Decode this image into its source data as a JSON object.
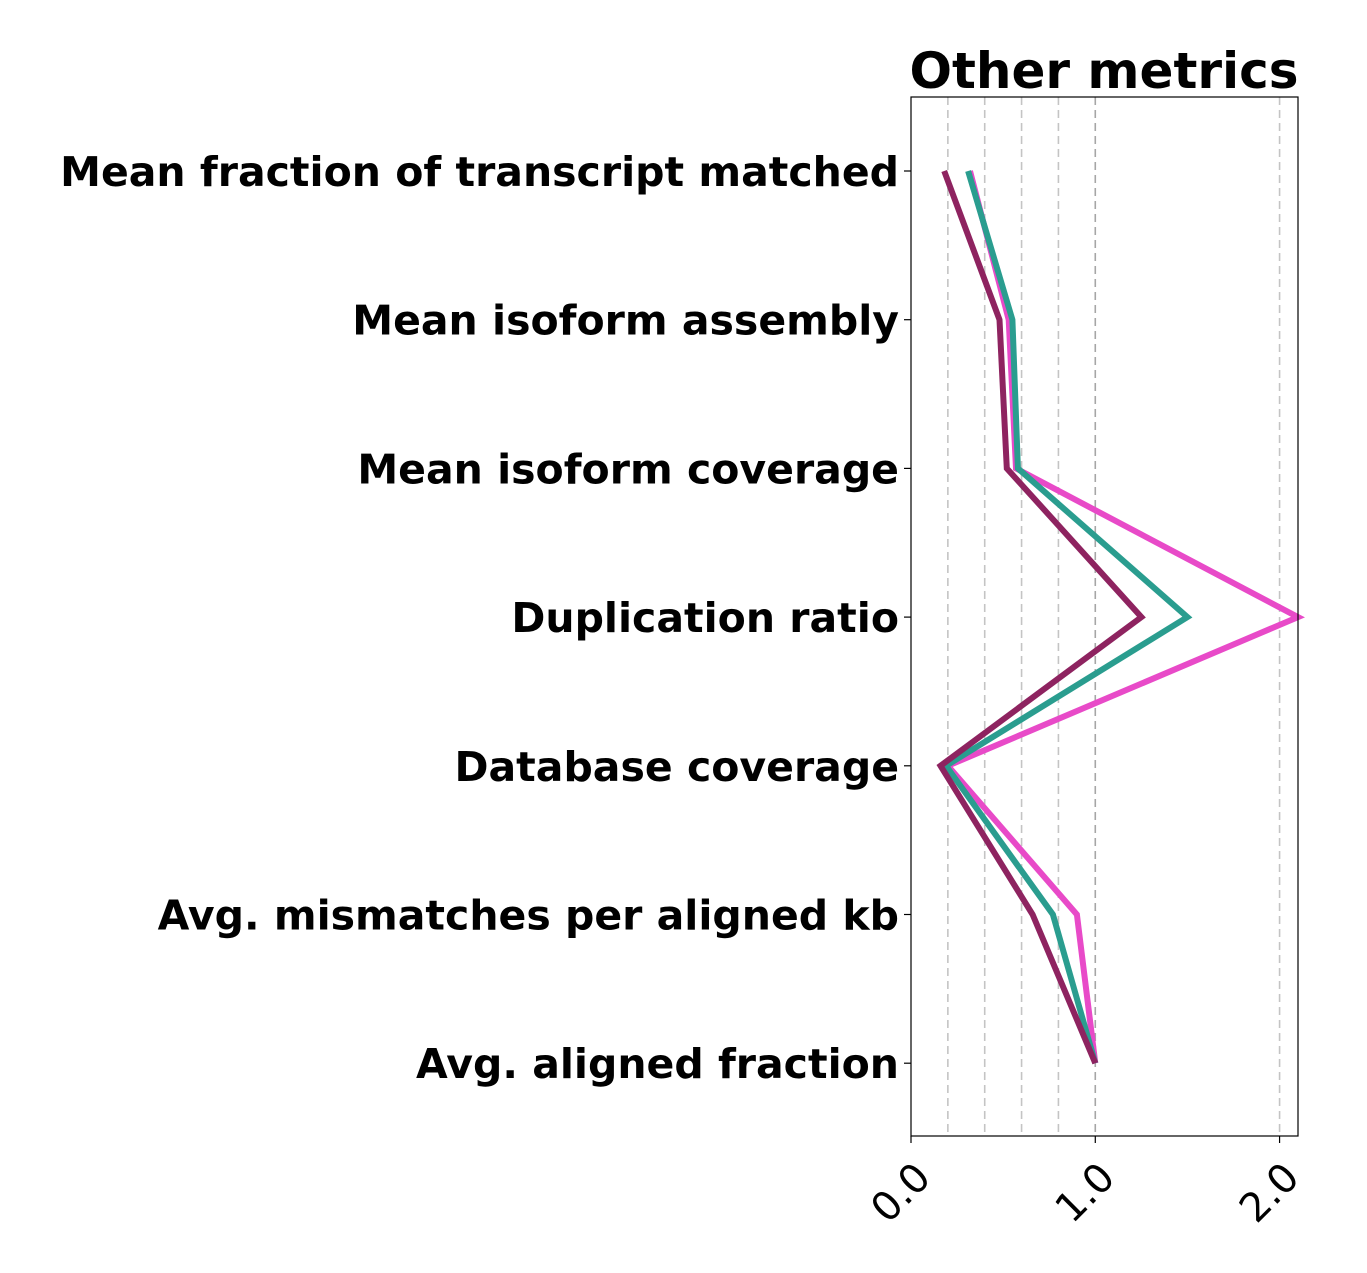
{
  "chart_data": {
    "type": "line",
    "orientation": "horizontal",
    "title": "Other metrics",
    "xlabel": "",
    "ylabel": "",
    "categories": [
      "Mean fraction of transcript matched",
      "Mean isoform assembly",
      "Mean isoform coverage",
      "Duplication ratio",
      "Database coverage",
      "Avg. mismatches per aligned kb",
      "Avg. aligned fraction"
    ],
    "x_ticks": [
      {
        "value": 0.0,
        "label": "0.0"
      },
      {
        "value": 1.0,
        "label": "1.0"
      },
      {
        "value": 2.0,
        "label": "2.0"
      }
    ],
    "xlim": [
      0.0,
      2.1
    ],
    "gridlines_x": [
      0.2,
      0.4,
      0.6,
      0.8,
      1.0,
      2.0
    ],
    "grid": true,
    "legend": "none",
    "series": [
      {
        "color": "#e84ac8",
        "values": [
          0.32,
          0.53,
          0.57,
          2.1,
          0.2,
          0.9,
          1.0
        ]
      },
      {
        "color": "#2a9d8f",
        "values": [
          0.31,
          0.55,
          0.58,
          1.5,
          0.19,
          0.77,
          1.0
        ]
      },
      {
        "color": "#8e2360",
        "values": [
          0.18,
          0.48,
          0.52,
          1.25,
          0.16,
          0.66,
          1.0
        ]
      }
    ]
  }
}
